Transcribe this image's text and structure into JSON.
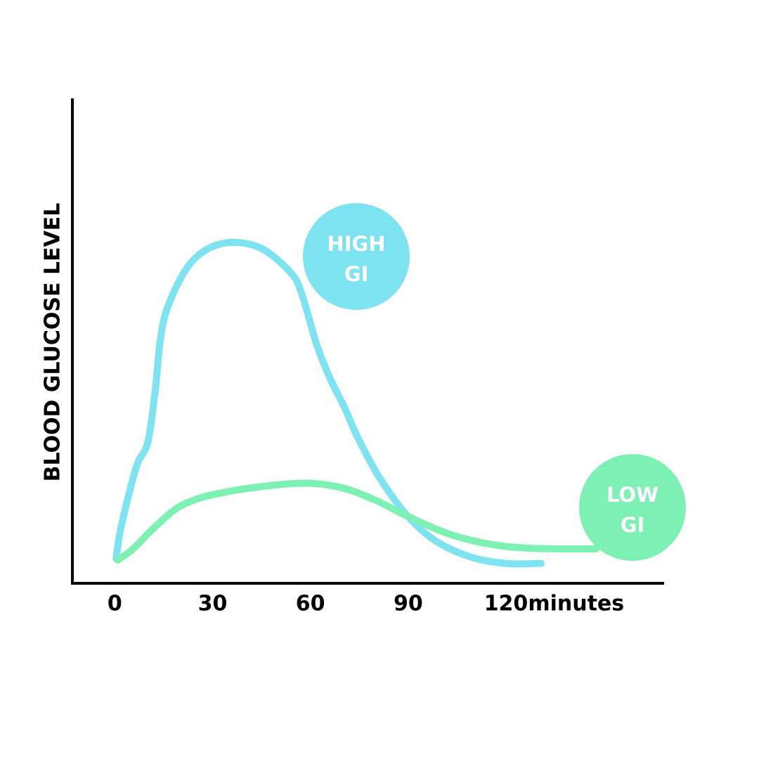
{
  "chart_data": {
    "type": "line",
    "y_label": "BLOOD GLUCOSE LEVEL",
    "x_label": "minutes",
    "xlim": [
      -13,
      168.5
    ],
    "ylim": [
      0,
      100
    ],
    "xticks": [
      0,
      30,
      60,
      90,
      120
    ],
    "series": [
      {
        "label": [
          "HIGH",
          "GI"
        ],
        "color": "#7ee3f0",
        "x": [
          0.4,
          1.5,
          3.7,
          6.9,
          10.1,
          12.3,
          14.4,
          17.7,
          23.1,
          29.5,
          37.1,
          45.7,
          54.3,
          57.5,
          61.9,
          66.2,
          70.5,
          74.8,
          81.3,
          89.9,
          98.5,
          109.3,
          120,
          130.8
        ],
        "values": [
          5.1,
          10.1,
          16.7,
          24.6,
          29,
          39.1,
          52.2,
          59.4,
          65.9,
          69.3,
          70.3,
          68.8,
          63.8,
          59.4,
          49.3,
          42,
          36.2,
          29.7,
          21.7,
          13.8,
          8.7,
          5.4,
          4.1,
          4.1
        ]
      },
      {
        "label": [
          "LOW",
          "GI"
        ],
        "color": "#7df0b4",
        "x": [
          0.9,
          5.8,
          12.3,
          20.9,
          33.8,
          55.4,
          68.3,
          79.1,
          89.9,
          102.8,
          115.7,
          128.7,
          147.6
        ],
        "values": [
          4.8,
          7.2,
          11.6,
          16.2,
          18.8,
          20.6,
          19.9,
          17.4,
          13.8,
          10.1,
          8.0,
          7.2,
          7.1
        ]
      }
    ]
  }
}
